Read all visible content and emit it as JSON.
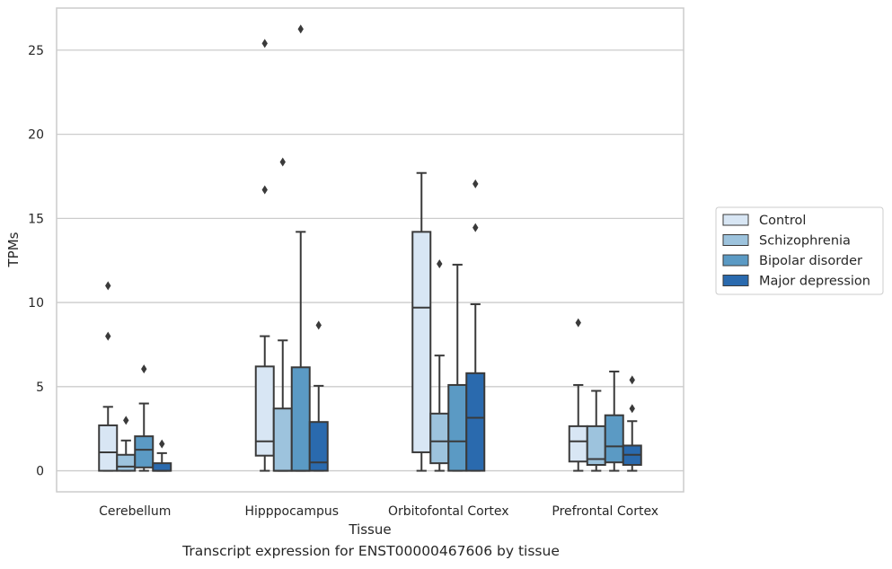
{
  "caption": "Transcript expression for ENST00000467606 by tissue",
  "chart_data": {
    "type": "box",
    "xlabel": "Tissue",
    "ylabel": "TPMs",
    "ylim": [
      -1.25,
      27.5
    ],
    "yticks": [
      0,
      5,
      10,
      15,
      20,
      25
    ],
    "grid": "horizontal",
    "legend_position": "right",
    "categories": [
      "Cerebellum",
      "Hipppocampus",
      "Orbitofontal Cortex",
      "Prefrontal Cortex"
    ],
    "series": [
      {
        "name": "Control",
        "color": "#d8e6f4",
        "boxes": [
          {
            "whisker_low": 0,
            "q1": 0,
            "median": 1.1,
            "q3": 2.7,
            "whisker_high": 3.8,
            "outliers": [
              8.0,
              11.0
            ]
          },
          {
            "whisker_low": 0,
            "q1": 0.9,
            "median": 1.75,
            "q3": 6.2,
            "whisker_high": 8.0,
            "outliers": [
              16.7,
              25.4
            ]
          },
          {
            "whisker_low": 0,
            "q1": 1.1,
            "median": 9.7,
            "q3": 14.2,
            "whisker_high": 17.7,
            "outliers": []
          },
          {
            "whisker_low": 0,
            "q1": 0.55,
            "median": 1.75,
            "q3": 2.65,
            "whisker_high": 5.1,
            "outliers": [
              8.8
            ]
          }
        ]
      },
      {
        "name": "Schizophrenia",
        "color": "#9dc3dd",
        "boxes": [
          {
            "whisker_low": 0,
            "q1": 0,
            "median": 0.25,
            "q3": 0.95,
            "whisker_high": 1.8,
            "outliers": [
              3.0
            ]
          },
          {
            "whisker_low": 0,
            "q1": 0,
            "median": 0,
            "q3": 3.7,
            "whisker_high": 7.75,
            "outliers": [
              18.35
            ]
          },
          {
            "whisker_low": 0,
            "q1": 0.45,
            "median": 1.75,
            "q3": 3.4,
            "whisker_high": 6.85,
            "outliers": [
              12.3
            ]
          },
          {
            "whisker_low": 0,
            "q1": 0.35,
            "median": 0.7,
            "q3": 2.65,
            "whisker_high": 4.75,
            "outliers": []
          }
        ]
      },
      {
        "name": "Bipolar disorder",
        "color": "#5b9ac4",
        "boxes": [
          {
            "whisker_low": 0,
            "q1": 0.2,
            "median": 1.25,
            "q3": 2.05,
            "whisker_high": 4.0,
            "outliers": [
              6.05
            ]
          },
          {
            "whisker_low": 0,
            "q1": 0,
            "median": 0,
            "q3": 6.15,
            "whisker_high": 14.2,
            "outliers": [
              26.25
            ]
          },
          {
            "whisker_low": 0,
            "q1": 0,
            "median": 1.75,
            "q3": 5.1,
            "whisker_high": 12.25,
            "outliers": []
          },
          {
            "whisker_low": 0,
            "q1": 0.5,
            "median": 1.45,
            "q3": 3.3,
            "whisker_high": 5.9,
            "outliers": []
          }
        ]
      },
      {
        "name": "Major depression",
        "color": "#2a6aae",
        "boxes": [
          {
            "whisker_low": 0,
            "q1": 0,
            "median": 0,
            "q3": 0.45,
            "whisker_high": 1.05,
            "outliers": [
              1.6
            ]
          },
          {
            "whisker_low": 0,
            "q1": 0,
            "median": 0.5,
            "q3": 2.9,
            "whisker_high": 5.05,
            "outliers": [
              8.65
            ]
          },
          {
            "whisker_low": 0,
            "q1": 0,
            "median": 3.15,
            "q3": 5.8,
            "whisker_high": 9.9,
            "outliers": [
              14.45,
              17.05
            ]
          },
          {
            "whisker_low": 0,
            "q1": 0.35,
            "median": 0.95,
            "q3": 1.5,
            "whisker_high": 2.95,
            "outliers": [
              3.7,
              5.4
            ]
          }
        ]
      }
    ]
  }
}
